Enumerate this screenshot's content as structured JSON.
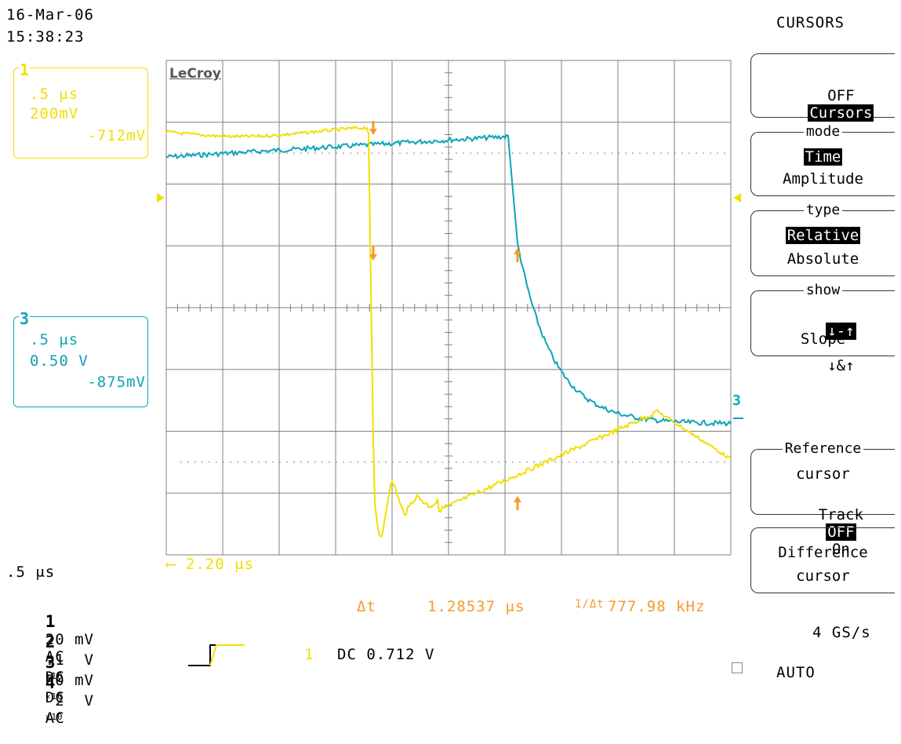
{
  "timestamp": {
    "date": "16-Mar-06",
    "time": "15:38:23"
  },
  "brand": "LeCroy",
  "panel_title": "CURSORS",
  "channel_boxes": [
    {
      "number": "1",
      "timebase": ".5 μs",
      "volts_div": "200mV",
      "offset": "-712mV",
      "color": "#f0e000"
    },
    {
      "number": "3",
      "timebase": ".5 μs",
      "volts_div": "0.50 V",
      "offset": "-875mV",
      "color": "#0aa4b8"
    }
  ],
  "timebase": ".5 μs",
  "trigger_delay": "⟵ 2.20 μs",
  "measurement": {
    "dt_label": "Δt",
    "dt_value": "1.28537 μs",
    "freq_label": "1/Δt",
    "freq_value": "777.98 kHz"
  },
  "channels": [
    {
      "num": "1",
      "scale": "20 mV",
      "coupling": "AC",
      "probe": "×10"
    },
    {
      "num": "2",
      "scale": ".1  V",
      "coupling": "DC",
      "probe": "×10"
    },
    {
      "num": "3",
      "scale": "50 mV",
      "coupling": "DC",
      "probe": "×10"
    },
    {
      "num": "4",
      "scale": " 2  V",
      "coupling": "AC",
      "probe": ""
    }
  ],
  "trigger": {
    "source": "1",
    "coupling_level": "DC 0.712 V"
  },
  "sample_rate": "4 GS/s",
  "trigger_mode": "AUTO",
  "menu": {
    "cursors": {
      "off_label": "OFF",
      "on_label": "Cursors"
    },
    "mode": {
      "title": "mode",
      "selected": "Time",
      "other": "Amplitude"
    },
    "type": {
      "title": "type",
      "selected": "Relative",
      "other": "Absolute"
    },
    "show": {
      "title": "show",
      "selected": "↓-↑",
      "other": "↓&↑",
      "label": "Slope"
    },
    "reference": {
      "line1": "Reference",
      "line2": "cursor",
      "track_label": "Track",
      "off": "OFF",
      "on": "On"
    },
    "difference": {
      "line1": "Difference",
      "line2": "cursor"
    }
  },
  "colors": {
    "ch1": "#f0e000",
    "ch3": "#0aa4b8",
    "cursor": "#f59a2a",
    "grid": "#808080"
  }
}
